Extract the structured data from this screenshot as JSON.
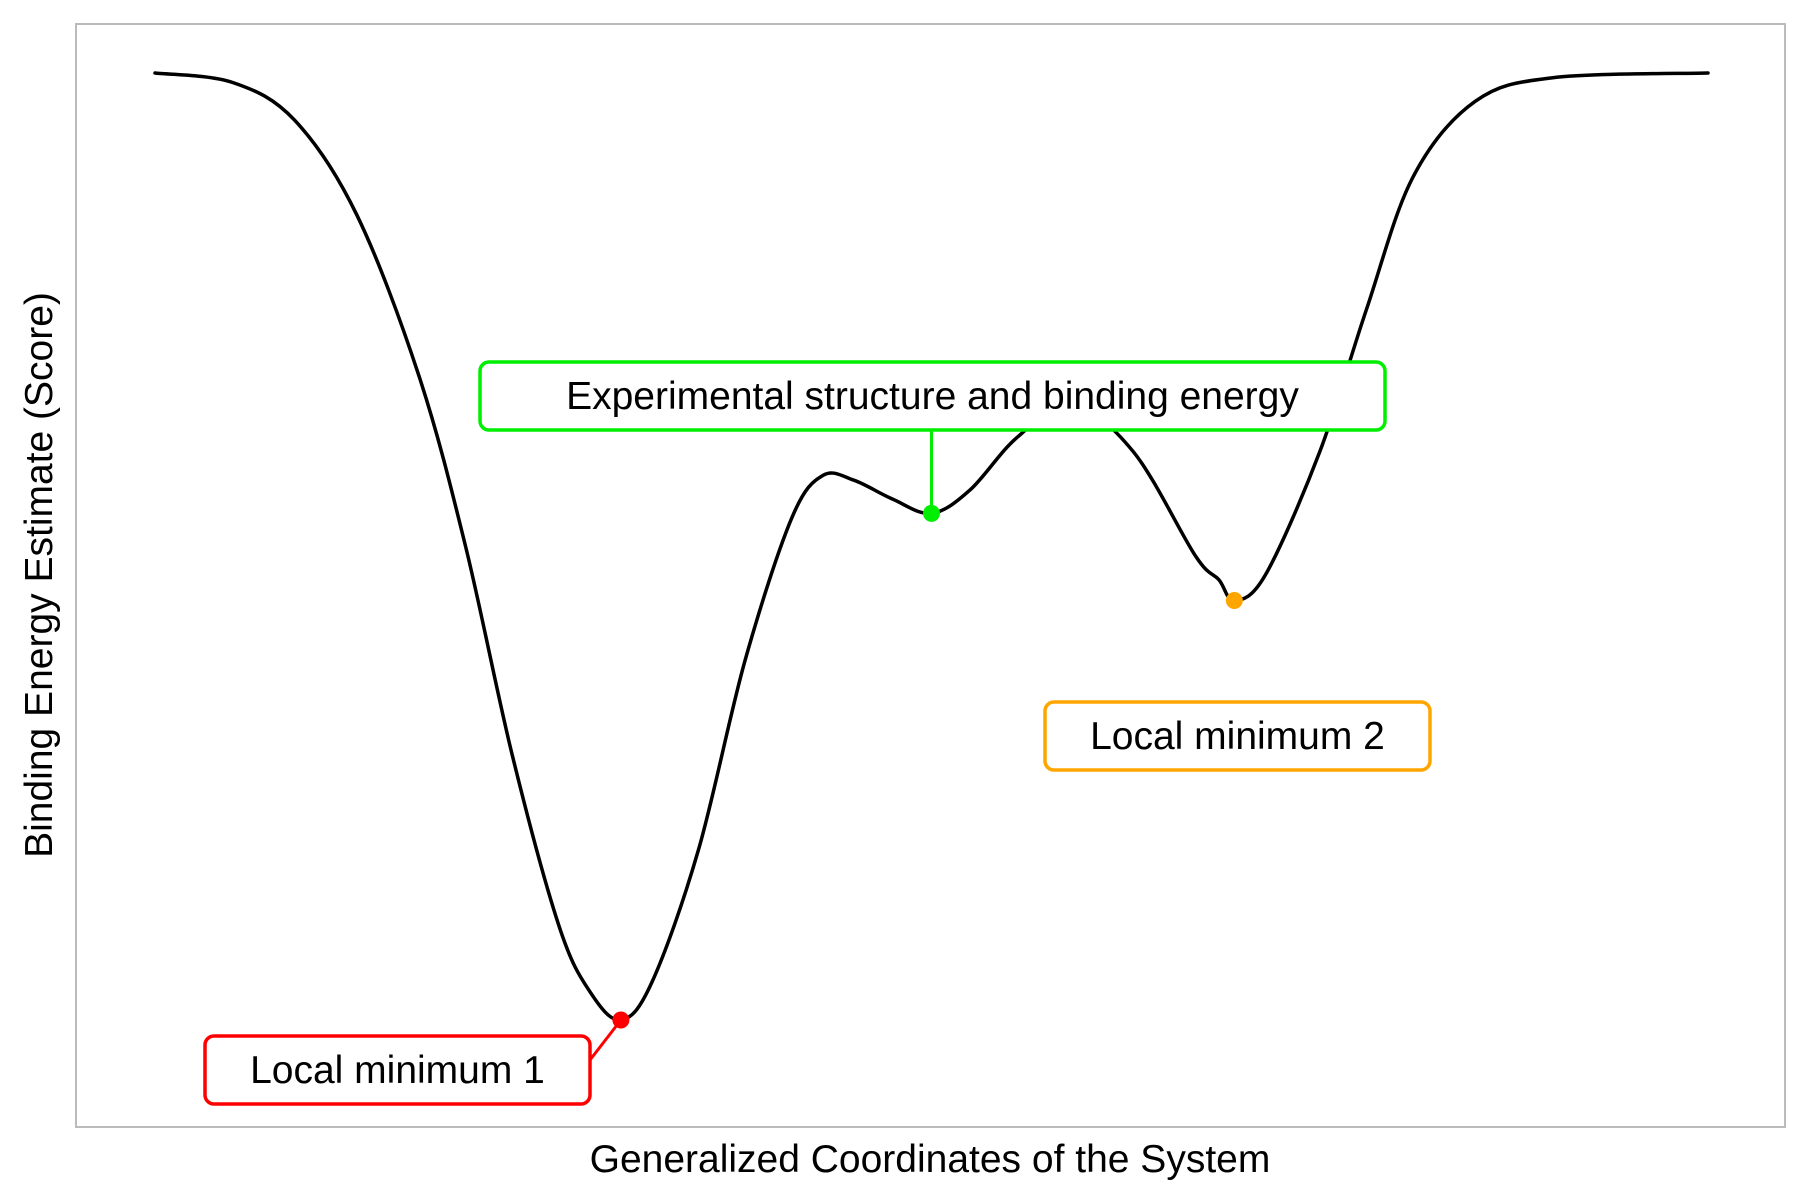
{
  "chart_data": {
    "type": "line",
    "title": "",
    "xlabel": "Generalized Coordinates of the System",
    "ylabel": "Binding Energy Estimate (Score)",
    "xlim": [
      0,
      10
    ],
    "ylim": [
      -0.08,
      1.05
    ],
    "grid": false,
    "legend": "none",
    "x_ticks_shown": false,
    "y_ticks_shown": false,
    "series": [
      {
        "color": "#000000",
        "points": [
          [
            0.0,
            1.0
          ],
          [
            0.5,
            0.99
          ],
          [
            0.9,
            0.95
          ],
          [
            1.3,
            0.85
          ],
          [
            1.7,
            0.68
          ],
          [
            2.0,
            0.5
          ],
          [
            2.3,
            0.28
          ],
          [
            2.6,
            0.1
          ],
          [
            2.8,
            0.03
          ],
          [
            3.0,
            0.0
          ],
          [
            3.2,
            0.04
          ],
          [
            3.5,
            0.18
          ],
          [
            3.8,
            0.38
          ],
          [
            4.1,
            0.53
          ],
          [
            4.3,
            0.575
          ],
          [
            4.5,
            0.57
          ],
          [
            4.75,
            0.55
          ],
          [
            5.0,
            0.535
          ],
          [
            5.25,
            0.56
          ],
          [
            5.55,
            0.615
          ],
          [
            5.9,
            0.65
          ],
          [
            6.3,
            0.6
          ],
          [
            6.7,
            0.49
          ],
          [
            6.85,
            0.465
          ],
          [
            6.95,
            0.443
          ],
          [
            7.15,
            0.47
          ],
          [
            7.5,
            0.6
          ],
          [
            7.8,
            0.75
          ],
          [
            8.1,
            0.89
          ],
          [
            8.5,
            0.97
          ],
          [
            9.0,
            0.995
          ],
          [
            10.0,
            1.0
          ]
        ]
      }
    ],
    "annotations": [
      {
        "text": "Experimental structure and binding energy",
        "x": 5.0,
        "y": 0.535,
        "color": "#00ee00"
      },
      {
        "text": "Local minimum 2",
        "x": 6.95,
        "y": 0.443,
        "color": "#ffa500"
      },
      {
        "text": "Local minimum 1",
        "x": 3.0,
        "y": 0.0,
        "color": "#ff0000"
      }
    ],
    "frame_color": "#bbbbbb"
  }
}
